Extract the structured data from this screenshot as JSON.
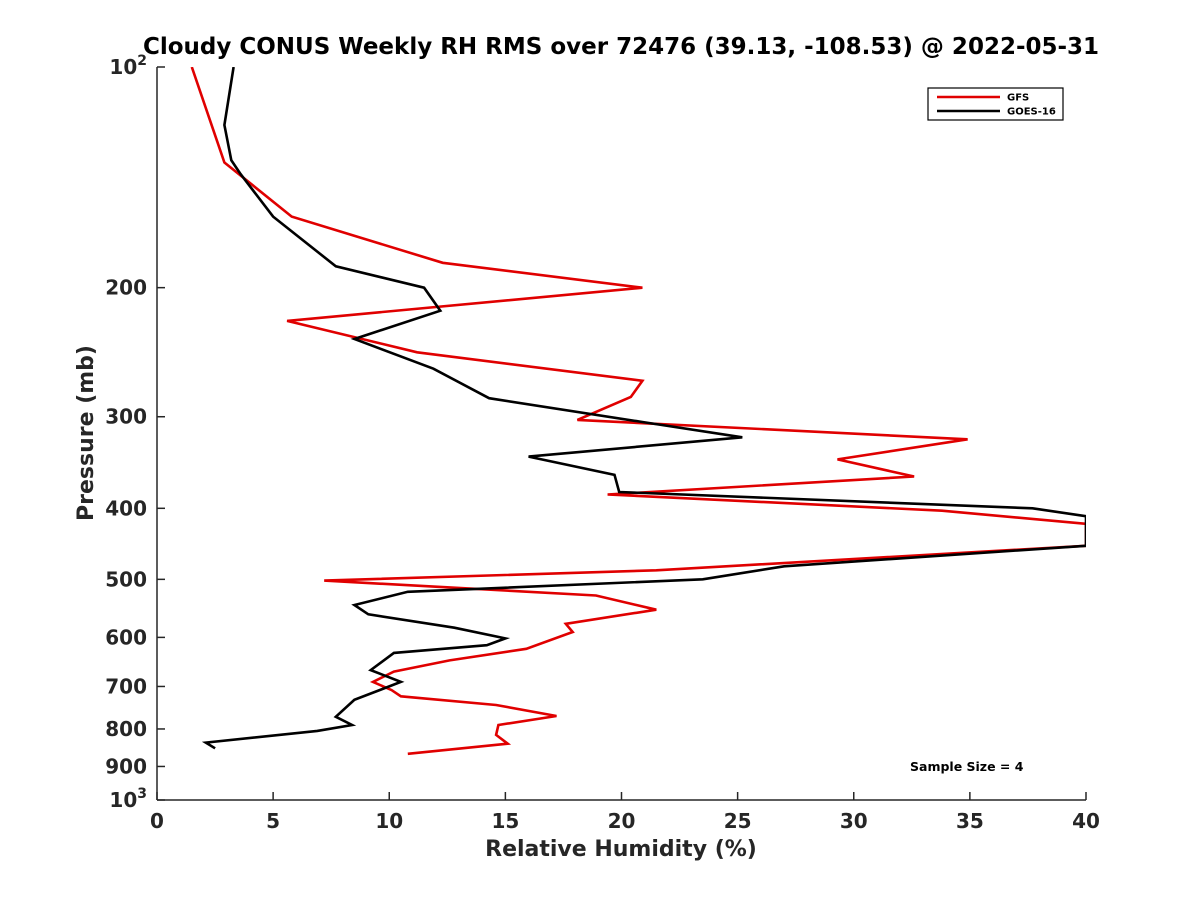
{
  "chart_data": {
    "type": "line",
    "title": "Cloudy CONUS Weekly RH RMS over 72476 (39.13, -108.53) @ 2022-05-31",
    "xlabel": "Relative Humidity (%)",
    "ylabel": "Pressure (mb)",
    "xlim": [
      0,
      40
    ],
    "ylim": [
      100,
      1000
    ],
    "y_scale": "log",
    "y_reversed": true,
    "x_ticks": [
      "0",
      "5",
      "10",
      "15",
      "20",
      "25",
      "30",
      "35",
      "40"
    ],
    "y_ticks": [
      {
        "value": 100,
        "base": "10",
        "exp": "2"
      },
      {
        "value": 200,
        "label": "200"
      },
      {
        "value": 300,
        "label": "300"
      },
      {
        "value": 400,
        "label": "400"
      },
      {
        "value": 500,
        "label": "500"
      },
      {
        "value": 600,
        "label": "600"
      },
      {
        "value": 700,
        "label": "700"
      },
      {
        "value": 800,
        "label": "800"
      },
      {
        "value": 900,
        "label": "900"
      },
      {
        "value": 1000,
        "base": "10",
        "exp": "3"
      }
    ],
    "legend_position": "top-right",
    "annotation": "Sample Size = 4",
    "series": [
      {
        "name": "GFS",
        "color": "#e00000",
        "points": [
          [
            1.5,
            100
          ],
          [
            2.9,
            135
          ],
          [
            5.8,
            160
          ],
          [
            12.3,
            185
          ],
          [
            20.9,
            200
          ],
          [
            5.6,
            222
          ],
          [
            11.2,
            245
          ],
          [
            20.9,
            268
          ],
          [
            20.4,
            282
          ],
          [
            18.1,
            303
          ],
          [
            34.9,
            322
          ],
          [
            29.3,
            343
          ],
          [
            32.6,
            362
          ],
          [
            19.4,
            383
          ],
          [
            33.8,
            403
          ],
          [
            40,
            420
          ],
          [
            40,
            450
          ],
          [
            21.5,
            486
          ],
          [
            7.2,
            502
          ],
          [
            18.9,
            526
          ],
          [
            21.5,
            550
          ],
          [
            17.6,
            575
          ],
          [
            17.9,
            590
          ],
          [
            15.9,
            622
          ],
          [
            12.6,
            645
          ],
          [
            10.2,
            668
          ],
          [
            9.3,
            690
          ],
          [
            10.1,
            708
          ],
          [
            10.5,
            722
          ],
          [
            14.6,
            742
          ],
          [
            17.2,
            768
          ],
          [
            14.7,
            790
          ],
          [
            14.6,
            815
          ],
          [
            15.1,
            838
          ],
          [
            10.8,
            865
          ]
        ]
      },
      {
        "name": "GOES-16",
        "color": "#000000",
        "points": [
          [
            3.3,
            100
          ],
          [
            2.9,
            120
          ],
          [
            3.2,
            134
          ],
          [
            3.6,
            140
          ],
          [
            5.0,
            160
          ],
          [
            7.7,
            187
          ],
          [
            11.5,
            200
          ],
          [
            12.2,
            215
          ],
          [
            8.5,
            235
          ],
          [
            11.9,
            258
          ],
          [
            14.3,
            283
          ],
          [
            20.9,
            305
          ],
          [
            25.2,
            320
          ],
          [
            16.0,
            340
          ],
          [
            19.7,
            360
          ],
          [
            19.9,
            380
          ],
          [
            37.7,
            400
          ],
          [
            40,
            410
          ],
          [
            40,
            450
          ],
          [
            27.0,
            480
          ],
          [
            23.5,
            500
          ],
          [
            10.8,
            520
          ],
          [
            8.5,
            542
          ],
          [
            9.1,
            558
          ],
          [
            12.8,
            582
          ],
          [
            15.0,
            602
          ],
          [
            14.2,
            615
          ],
          [
            10.2,
            630
          ],
          [
            9.2,
            665
          ],
          [
            10.5,
            690
          ],
          [
            8.5,
            730
          ],
          [
            7.7,
            770
          ],
          [
            8.4,
            790
          ],
          [
            6.9,
            805
          ],
          [
            2.1,
            835
          ],
          [
            2.5,
            850
          ]
        ]
      }
    ]
  }
}
